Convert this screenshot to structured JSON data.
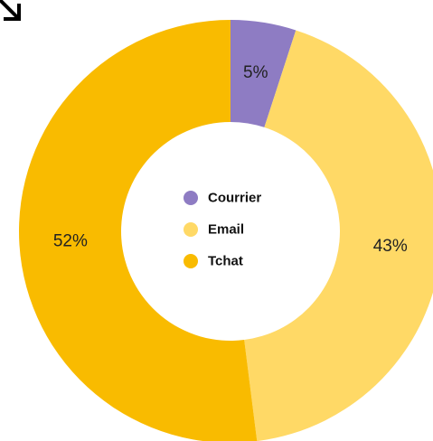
{
  "chart_data": {
    "type": "pie",
    "donut": true,
    "categories": [
      "Courrier",
      "Email",
      "Tchat"
    ],
    "values": [
      5,
      43,
      52
    ],
    "labels": [
      "5%",
      "43%",
      "52%"
    ],
    "colors": [
      "#8e7cc3",
      "#ffd966",
      "#f9bb00"
    ],
    "legend_position": "center",
    "start": "top",
    "direction": "clockwise"
  },
  "corner_icon": "diagonal-arrow-icon"
}
